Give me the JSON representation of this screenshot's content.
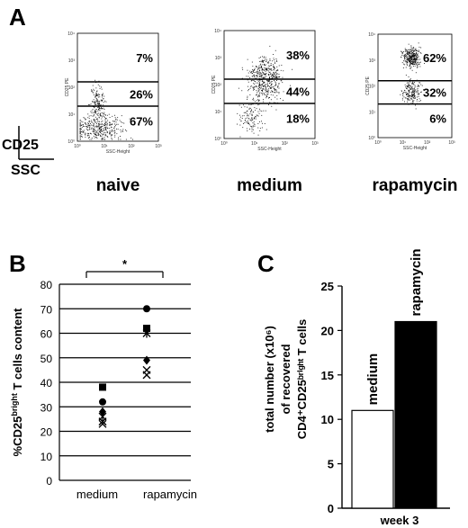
{
  "panels": {
    "a_letter": "A",
    "b_letter": "B",
    "c_letter": "C"
  },
  "panel_a": {
    "key_y": "CD25",
    "key_x": "SSC",
    "tick_labels_y": [
      "10⁴",
      "10³",
      "10²",
      "10¹",
      "10⁰"
    ],
    "tick_labels_x": [
      "10⁰",
      "10¹",
      "10²",
      "10³"
    ],
    "axis_y_small": "CD25 PE",
    "axis_x_small": "SSC-Height",
    "plots": [
      {
        "label": "naive",
        "gates": [
          "7%",
          "26%",
          "67%"
        ],
        "gate_bounds": [
          2.2,
          1.3
        ],
        "density": "low"
      },
      {
        "label": "medium",
        "gates": [
          "38%",
          "44%",
          "18%"
        ],
        "gate_bounds": [
          2.2,
          1.3
        ],
        "density": "mid"
      },
      {
        "label": "rapamycin",
        "gates": [
          "62%",
          "32%",
          "6%"
        ],
        "gate_bounds": [
          2.2,
          1.3
        ],
        "density": "high"
      }
    ]
  },
  "chart_data": [
    {
      "type": "scatter",
      "title": "",
      "ylabel": "%CD25bright T cells content",
      "ylabel_parts": {
        "pre": "%CD25",
        "sup": "bright",
        "post": " T cells content"
      },
      "xlabel": "",
      "categories": [
        "medium",
        "rapamycin"
      ],
      "ylim": [
        0,
        80
      ],
      "yticks": [
        0,
        10,
        20,
        30,
        40,
        50,
        60,
        70,
        80
      ],
      "grid": true,
      "significance": "*",
      "series": [
        {
          "marker": "circle",
          "values": [
            32,
            70
          ]
        },
        {
          "marker": "square",
          "values": [
            38,
            62
          ]
        },
        {
          "marker": "diamond",
          "values": [
            28,
            49
          ]
        },
        {
          "marker": "x",
          "values": [
            24,
            43
          ]
        },
        {
          "marker": "star",
          "values": [
            26,
            60
          ]
        },
        {
          "marker": "triangle",
          "values": [
            23,
            45
          ]
        }
      ]
    },
    {
      "type": "bar",
      "title": "",
      "ylabel_lines": [
        "total number (x10⁶)",
        "of recovered",
        "CD4⁺CD25ᵇʳⁱᵍʰᵗ T cells"
      ],
      "xlabel": "week 3",
      "categories": [
        "medium",
        "rapamycin"
      ],
      "values": [
        11,
        21
      ],
      "colors": [
        "#ffffff",
        "#000000"
      ],
      "ylim": [
        0,
        25
      ],
      "yticks": [
        0,
        5,
        10,
        15,
        20,
        25
      ],
      "grid": false
    }
  ]
}
